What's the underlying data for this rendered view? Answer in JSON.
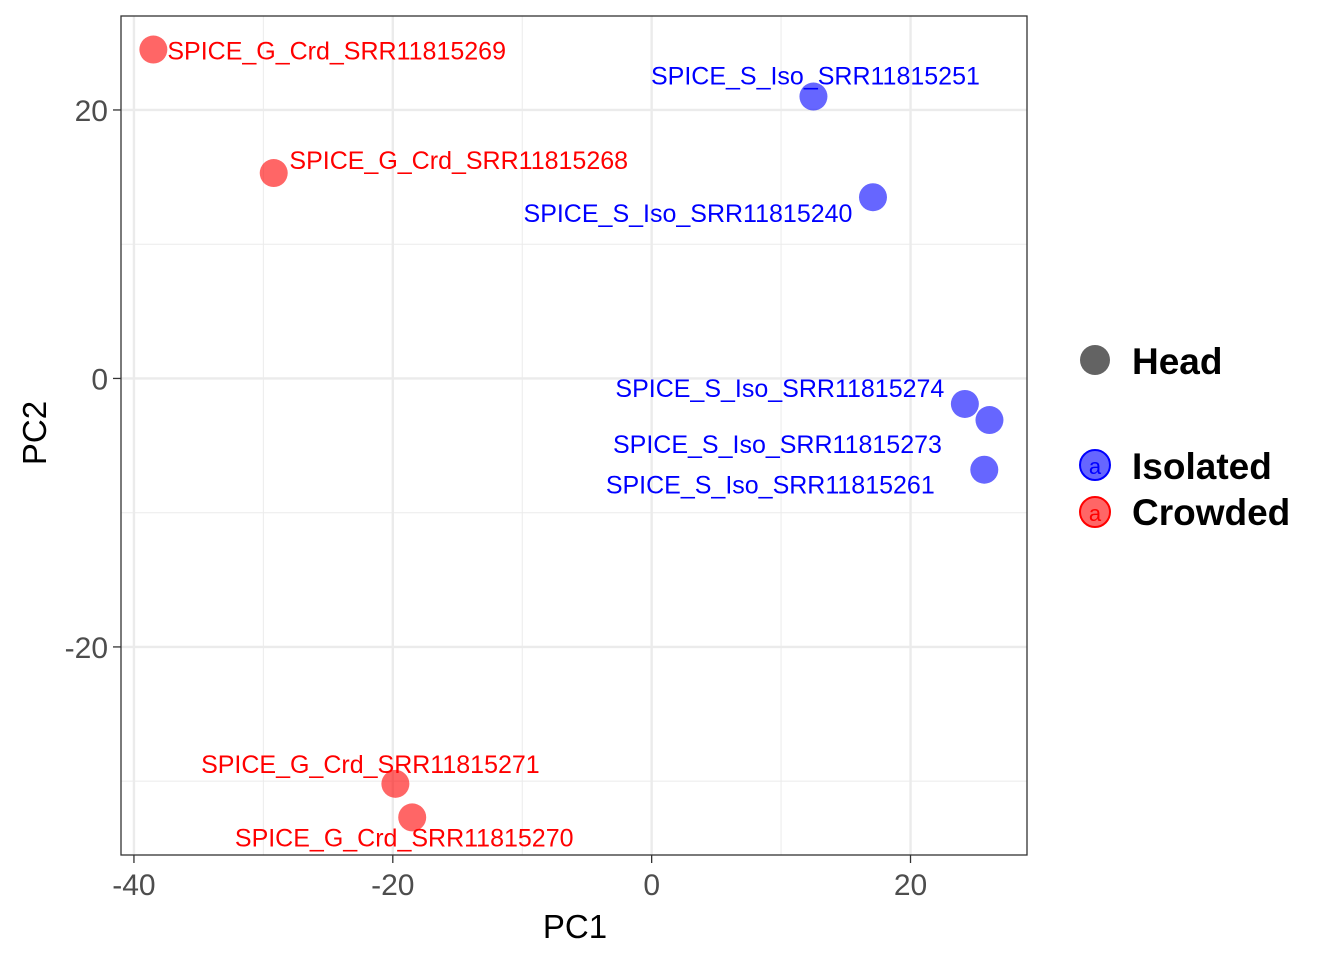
{
  "chart_data": {
    "type": "scatter",
    "xlabel": "PC1",
    "ylabel": "PC2",
    "xlim": [
      -41,
      29
    ],
    "ylim": [
      -35.5,
      27
    ],
    "x_ticks": [
      -40,
      -20,
      0,
      20
    ],
    "y_ticks": [
      -20,
      0,
      20
    ],
    "x_tick_labels": [
      "-40",
      "-20",
      "0",
      "20"
    ],
    "y_tick_labels": [
      "-20",
      "0",
      "20"
    ],
    "grid": true,
    "colors": {
      "Isolated": "#0000ff",
      "Crowded": "#ff0000"
    },
    "points": [
      {
        "label": "SPICE_G_Crd_SRR11815269",
        "group": "Crowded",
        "x": -38.5,
        "y": 24.5
      },
      {
        "label": "SPICE_S_Iso_SRR11815251",
        "group": "Isolated",
        "x": 12.5,
        "y": 21.0
      },
      {
        "label": "SPICE_G_Crd_SRR11815268",
        "group": "Crowded",
        "x": -29.2,
        "y": 15.3
      },
      {
        "label": "SPICE_S_Iso_SRR11815240",
        "group": "Isolated",
        "x": 17.1,
        "y": 13.5
      },
      {
        "label": "SPICE_S_Iso_SRR11815274",
        "group": "Isolated",
        "x": 24.2,
        "y": -1.9
      },
      {
        "label": "SPICE_S_Iso_SRR11815273",
        "group": "Isolated",
        "x": 26.1,
        "y": -3.1
      },
      {
        "label": "SPICE_S_Iso_SRR11815261",
        "group": "Isolated",
        "x": 25.7,
        "y": -6.8
      },
      {
        "label": "SPICE_G_Crd_SRR11815271",
        "group": "Crowded",
        "x": -19.8,
        "y": -30.2
      },
      {
        "label": "SPICE_G_Crd_SRR11815270",
        "group": "Crowded",
        "x": -18.5,
        "y": -32.7
      }
    ],
    "legend": {
      "position": "right",
      "shape_entries": [
        "Head"
      ],
      "color_entries": [
        "Isolated",
        "Crowded"
      ],
      "key_letter": "a"
    }
  }
}
